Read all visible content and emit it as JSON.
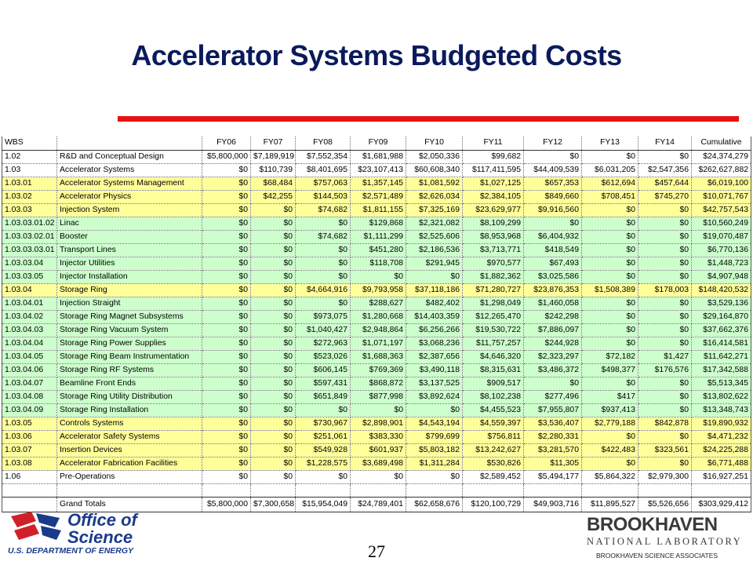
{
  "slide": {
    "title": "Accelerator Systems Budgeted Costs",
    "page_number": "27"
  },
  "table": {
    "headers": [
      "WBS",
      "",
      "FY06",
      "FY07",
      "FY08",
      "FY09",
      "FY10",
      "FY11",
      "FY12",
      "FY13",
      "FY14",
      "Cumulative"
    ],
    "rows": [
      {
        "wbs": "1.02",
        "name": "R&D and Conceptual Design",
        "fy06": "$5,800,000",
        "fy07": "$7,189,919",
        "fy08": "$7,552,354",
        "fy09": "$1,681,988",
        "fy10": "$2,050,336",
        "fy11": "$99,682",
        "fy12": "$0",
        "fy13": "$0",
        "fy14": "$0",
        "cum": "$24,374,279",
        "shade": "white"
      },
      {
        "wbs": "1.03",
        "name": "Accelerator Systems",
        "fy06": "$0",
        "fy07": "$110,739",
        "fy08": "$8,401,695",
        "fy09": "$23,107,413",
        "fy10": "$60,608,340",
        "fy11": "$117,411,595",
        "fy12": "$44,409,539",
        "fy13": "$6,031,205",
        "fy14": "$2,547,356",
        "cum": "$262,627,882",
        "shade": "white"
      },
      {
        "wbs": "1.03.01",
        "name": "Accelerator Systems Management",
        "fy06": "$0",
        "fy07": "$68,484",
        "fy08": "$757,063",
        "fy09": "$1,357,145",
        "fy10": "$1,081,592",
        "fy11": "$1,027,125",
        "fy12": "$657,353",
        "fy13": "$612,694",
        "fy14": "$457,644",
        "cum": "$6,019,100",
        "shade": "yellow"
      },
      {
        "wbs": "1.03.02",
        "name": "Accelerator Physics",
        "fy06": "$0",
        "fy07": "$42,255",
        "fy08": "$144,503",
        "fy09": "$2,571,489",
        "fy10": "$2,626,034",
        "fy11": "$2,384,105",
        "fy12": "$849,660",
        "fy13": "$708,451",
        "fy14": "$745,270",
        "cum": "$10,071,767",
        "shade": "yellow"
      },
      {
        "wbs": "1.03.03",
        "name": "Injection System",
        "fy06": "$0",
        "fy07": "$0",
        "fy08": "$74,682",
        "fy09": "$1,811,155",
        "fy10": "$7,325,169",
        "fy11": "$23,629,977",
        "fy12": "$9,916,560",
        "fy13": "$0",
        "fy14": "$0",
        "cum": "$42,757,543",
        "shade": "yellow"
      },
      {
        "wbs": "1.03.03.01.02",
        "name": "Linac",
        "fy06": "$0",
        "fy07": "$0",
        "fy08": "$0",
        "fy09": "$129,868",
        "fy10": "$2,321,082",
        "fy11": "$8,109,299",
        "fy12": "$0",
        "fy13": "$0",
        "fy14": "$0",
        "cum": "$10,560,249",
        "shade": "green"
      },
      {
        "wbs": "1.03.03.02.01",
        "name": "Booster",
        "fy06": "$0",
        "fy07": "$0",
        "fy08": "$74,682",
        "fy09": "$1,111,299",
        "fy10": "$2,525,606",
        "fy11": "$8,953,968",
        "fy12": "$6,404,932",
        "fy13": "$0",
        "fy14": "$0",
        "cum": "$19,070,487",
        "shade": "green"
      },
      {
        "wbs": "1.03.03.03.01",
        "name": "Transport Lines",
        "fy06": "$0",
        "fy07": "$0",
        "fy08": "$0",
        "fy09": "$451,280",
        "fy10": "$2,186,536",
        "fy11": "$3,713,771",
        "fy12": "$418,549",
        "fy13": "$0",
        "fy14": "$0",
        "cum": "$6,770,136",
        "shade": "green"
      },
      {
        "wbs": "1.03.03.04",
        "name": "Injector Utilities",
        "fy06": "$0",
        "fy07": "$0",
        "fy08": "$0",
        "fy09": "$118,708",
        "fy10": "$291,945",
        "fy11": "$970,577",
        "fy12": "$67,493",
        "fy13": "$0",
        "fy14": "$0",
        "cum": "$1,448,723",
        "shade": "green"
      },
      {
        "wbs": "1.03.03.05",
        "name": "Injector Installation",
        "fy06": "$0",
        "fy07": "$0",
        "fy08": "$0",
        "fy09": "$0",
        "fy10": "$0",
        "fy11": "$1,882,362",
        "fy12": "$3,025,586",
        "fy13": "$0",
        "fy14": "$0",
        "cum": "$4,907,948",
        "shade": "green"
      },
      {
        "wbs": "1.03.04",
        "name": "Storage Ring",
        "fy06": "$0",
        "fy07": "$0",
        "fy08": "$4,664,916",
        "fy09": "$9,793,958",
        "fy10": "$37,118,186",
        "fy11": "$71,280,727",
        "fy12": "$23,876,353",
        "fy13": "$1,508,389",
        "fy14": "$178,003",
        "cum": "$148,420,532",
        "shade": "yellow"
      },
      {
        "wbs": "1.03.04.01",
        "name": "Injection Straight",
        "fy06": "$0",
        "fy07": "$0",
        "fy08": "$0",
        "fy09": "$288,627",
        "fy10": "$482,402",
        "fy11": "$1,298,049",
        "fy12": "$1,460,058",
        "fy13": "$0",
        "fy14": "$0",
        "cum": "$3,529,136",
        "shade": "green"
      },
      {
        "wbs": "1.03.04.02",
        "name": "Storage Ring Magnet Subsystems",
        "fy06": "$0",
        "fy07": "$0",
        "fy08": "$973,075",
        "fy09": "$1,280,668",
        "fy10": "$14,403,359",
        "fy11": "$12,265,470",
        "fy12": "$242,298",
        "fy13": "$0",
        "fy14": "$0",
        "cum": "$29,164,870",
        "shade": "green"
      },
      {
        "wbs": "1.03.04.03",
        "name": "Storage Ring Vacuum System",
        "fy06": "$0",
        "fy07": "$0",
        "fy08": "$1,040,427",
        "fy09": "$2,948,864",
        "fy10": "$6,256,266",
        "fy11": "$19,530,722",
        "fy12": "$7,886,097",
        "fy13": "$0",
        "fy14": "$0",
        "cum": "$37,662,376",
        "shade": "green"
      },
      {
        "wbs": "1.03.04.04",
        "name": "Storage Ring Power Supplies",
        "fy06": "$0",
        "fy07": "$0",
        "fy08": "$272,963",
        "fy09": "$1,071,197",
        "fy10": "$3,068,236",
        "fy11": "$11,757,257",
        "fy12": "$244,928",
        "fy13": "$0",
        "fy14": "$0",
        "cum": "$16,414,581",
        "shade": "green"
      },
      {
        "wbs": "1.03.04.05",
        "name": "Storage Ring Beam Instrumentation",
        "fy06": "$0",
        "fy07": "$0",
        "fy08": "$523,026",
        "fy09": "$1,688,363",
        "fy10": "$2,387,656",
        "fy11": "$4,646,320",
        "fy12": "$2,323,297",
        "fy13": "$72,182",
        "fy14": "$1,427",
        "cum": "$11,642,271",
        "shade": "green"
      },
      {
        "wbs": "1.03.04.06",
        "name": "Storage Ring RF Systems",
        "fy06": "$0",
        "fy07": "$0",
        "fy08": "$606,145",
        "fy09": "$769,369",
        "fy10": "$3,490,118",
        "fy11": "$8,315,631",
        "fy12": "$3,486,372",
        "fy13": "$498,377",
        "fy14": "$176,576",
        "cum": "$17,342,588",
        "shade": "green"
      },
      {
        "wbs": "1.03.04.07",
        "name": "Beamline Front Ends",
        "fy06": "$0",
        "fy07": "$0",
        "fy08": "$597,431",
        "fy09": "$868,872",
        "fy10": "$3,137,525",
        "fy11": "$909,517",
        "fy12": "$0",
        "fy13": "$0",
        "fy14": "$0",
        "cum": "$5,513,345",
        "shade": "green"
      },
      {
        "wbs": "1.03.04.08",
        "name": "Storage Ring Utility Distribution",
        "fy06": "$0",
        "fy07": "$0",
        "fy08": "$651,849",
        "fy09": "$877,998",
        "fy10": "$3,892,624",
        "fy11": "$8,102,238",
        "fy12": "$277,496",
        "fy13": "$417",
        "fy14": "$0",
        "cum": "$13,802,622",
        "shade": "green"
      },
      {
        "wbs": "1.03.04.09",
        "name": "Storage Ring Installation",
        "fy06": "$0",
        "fy07": "$0",
        "fy08": "$0",
        "fy09": "$0",
        "fy10": "$0",
        "fy11": "$4,455,523",
        "fy12": "$7,955,807",
        "fy13": "$937,413",
        "fy14": "$0",
        "cum": "$13,348,743",
        "shade": "green"
      },
      {
        "wbs": "1.03.05",
        "name": "Controls Systems",
        "fy06": "$0",
        "fy07": "$0",
        "fy08": "$730,967",
        "fy09": "$2,898,901",
        "fy10": "$4,543,194",
        "fy11": "$4,559,397",
        "fy12": "$3,536,407",
        "fy13": "$2,779,188",
        "fy14": "$842,878",
        "cum": "$19,890,932",
        "shade": "yellow"
      },
      {
        "wbs": "1.03.06",
        "name": "Accelerator Safety Systems",
        "fy06": "$0",
        "fy07": "$0",
        "fy08": "$251,061",
        "fy09": "$383,330",
        "fy10": "$799,699",
        "fy11": "$756,811",
        "fy12": "$2,280,331",
        "fy13": "$0",
        "fy14": "$0",
        "cum": "$4,471,232",
        "shade": "yellow"
      },
      {
        "wbs": "1.03.07",
        "name": "Insertion Devices",
        "fy06": "$0",
        "fy07": "$0",
        "fy08": "$549,928",
        "fy09": "$601,937",
        "fy10": "$5,803,182",
        "fy11": "$13,242,627",
        "fy12": "$3,281,570",
        "fy13": "$422,483",
        "fy14": "$323,561",
        "cum": "$24,225,288",
        "shade": "yellow"
      },
      {
        "wbs": "1.03.08",
        "name": "Accelerator Fabrication Facilities",
        "fy06": "$0",
        "fy07": "$0",
        "fy08": "$1,228,575",
        "fy09": "$3,689,498",
        "fy10": "$1,311,284",
        "fy11": "$530,826",
        "fy12": "$11,305",
        "fy13": "$0",
        "fy14": "$0",
        "cum": "$6,771,488",
        "shade": "yellow"
      },
      {
        "wbs": "1.06",
        "name": "Pre-Operations",
        "fy06": "$0",
        "fy07": "$0",
        "fy08": "$0",
        "fy09": "$0",
        "fy10": "$0",
        "fy11": "$2,589,452",
        "fy12": "$5,494,177",
        "fy13": "$5,864,322",
        "fy14": "$2,979,300",
        "cum": "$16,927,251",
        "shade": "white"
      },
      {
        "wbs": "",
        "name": "",
        "fy06": "",
        "fy07": "",
        "fy08": "",
        "fy09": "",
        "fy10": "",
        "fy11": "",
        "fy12": "",
        "fy13": "",
        "fy14": "",
        "cum": "",
        "shade": "white"
      }
    ],
    "totals": {
      "wbs": "",
      "name": "Grand Totals",
      "fy06": "$5,800,000",
      "fy07": "$7,300,658",
      "fy08": "$15,954,049",
      "fy09": "$24,789,401",
      "fy10": "$62,658,676",
      "fy11": "$120,100,729",
      "fy12": "$49,903,716",
      "fy13": "$11,895,527",
      "fy14": "$5,526,656",
      "cum": "$303,929,412"
    }
  },
  "footer": {
    "office_line1": "Office of",
    "office_line2": "Science",
    "department": "U.S. DEPARTMENT OF ENERGY",
    "bnl_name": "BROOKHAVEN",
    "bnl_sub": "NATIONAL LABORATORY",
    "bnl_assoc": "BROOKHAVEN SCIENCE ASSOCIATES"
  },
  "colors": {
    "title": "#0a1a5c",
    "rule": "#e81010",
    "row_yellow": "#ffff99",
    "row_green": "#ccffcc",
    "logo_blue": "#1a3a8c",
    "logo_red": "#d0202a"
  }
}
